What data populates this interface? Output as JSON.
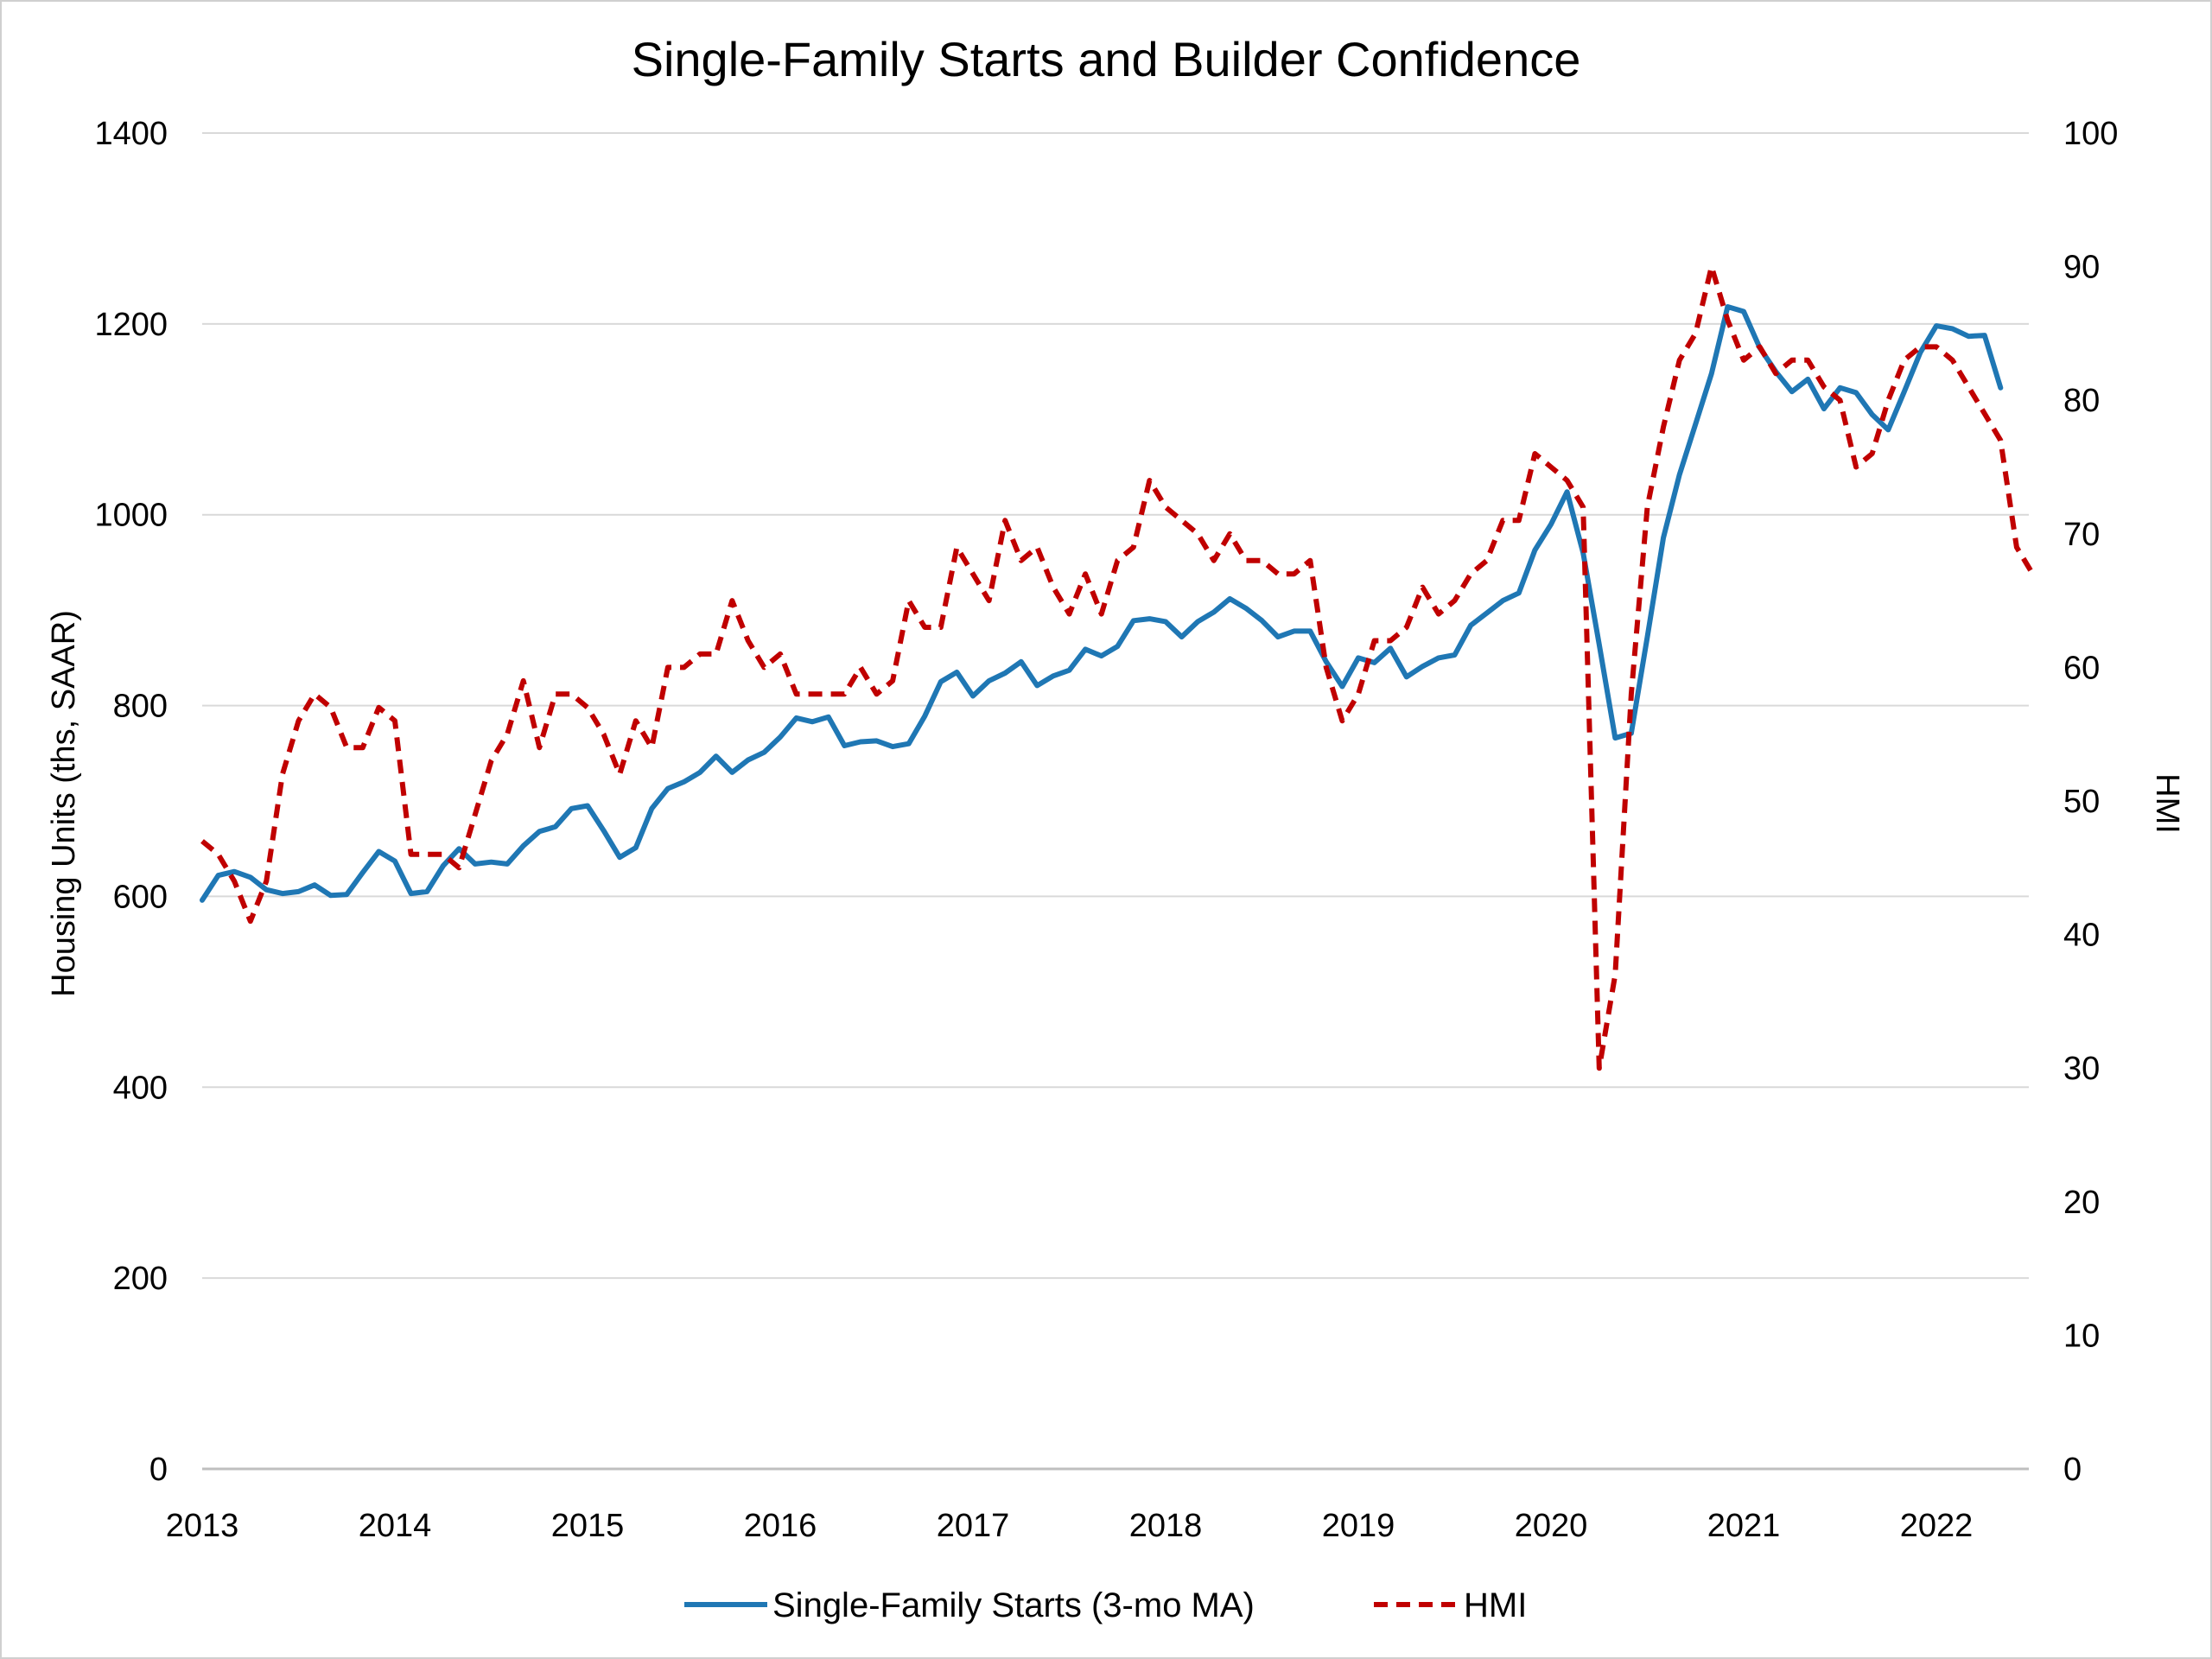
{
  "chart_data": {
    "type": "line",
    "title": "Single-Family Starts and Builder Confidence",
    "ylabel": "Housing Units (ths, SAAR)",
    "y2label": "HMI",
    "ylim": [
      0,
      1400
    ],
    "y2lim": [
      0,
      100
    ],
    "yticks": [
      0,
      200,
      400,
      600,
      800,
      1000,
      1200,
      1400
    ],
    "y2ticks": [
      0,
      10,
      20,
      30,
      40,
      50,
      60,
      70,
      80,
      90,
      100
    ],
    "xlim": [
      2013,
      2022.5
    ],
    "xticks": [
      "2013",
      "2014",
      "2015",
      "2016",
      "2017",
      "2018",
      "2019",
      "2020",
      "2021",
      "2022"
    ],
    "grid": "horizontal",
    "legend_position": "bottom",
    "colors": {
      "starts": "#1f77b4",
      "hmi": "#c00000"
    },
    "series": [
      {
        "name": "Single-Family Starts (3-mo MA)",
        "axis": "left",
        "style": "solid",
        "x_start": "2013-01",
        "interval": "monthly",
        "values": [
          596,
          622,
          626,
          620,
          607,
          603,
          605,
          612,
          601,
          602,
          625,
          647,
          637,
          603,
          605,
          632,
          650,
          634,
          636,
          634,
          653,
          668,
          673,
          692,
          695,
          669,
          641,
          651,
          692,
          713,
          720,
          730,
          747,
          730,
          743,
          751,
          767,
          787,
          783,
          788,
          758,
          762,
          763,
          757,
          760,
          789,
          825,
          835,
          810,
          826,
          834,
          846,
          821,
          831,
          837,
          859,
          852,
          862,
          889,
          891,
          888,
          872,
          888,
          898,
          912,
          902,
          889,
          872,
          878,
          878,
          846,
          820,
          850,
          845,
          860,
          830,
          841,
          850,
          853,
          884,
          897,
          910,
          918,
          963,
          990,
          1024,
          960,
          864,
          766,
          771,
          872,
          976,
          1042,
          1095,
          1148,
          1218,
          1213,
          1175,
          1150,
          1129,
          1142,
          1111,
          1133,
          1128,
          1105,
          1089,
          1129,
          1170,
          1198,
          1195,
          1187,
          1188,
          1133
        ]
      },
      {
        "name": "HMI",
        "axis": "right",
        "style": "dashed",
        "x_start": "2013-01",
        "interval": "monthly",
        "values": [
          47,
          46,
          44,
          41,
          44,
          52,
          56,
          58,
          57,
          54,
          54,
          57,
          56,
          46,
          46,
          46,
          45,
          49,
          53,
          55,
          59,
          54,
          58,
          58,
          57,
          55,
          52,
          56,
          54,
          60,
          60,
          61,
          61,
          65,
          62,
          60,
          61,
          58,
          58,
          58,
          58,
          60,
          58,
          59,
          65,
          63,
          63,
          69,
          67,
          65,
          71,
          68,
          69,
          66,
          64,
          67,
          64,
          68,
          69,
          74,
          72,
          71,
          70,
          68,
          70,
          68,
          68,
          67,
          67,
          68,
          60,
          56,
          58,
          62,
          62,
          63,
          66,
          64,
          65,
          67,
          68,
          71,
          71,
          76,
          75,
          74,
          72,
          30,
          37,
          58,
          72,
          78,
          83,
          85,
          90,
          86,
          83,
          84,
          82,
          83,
          83,
          81,
          80,
          75,
          76,
          80,
          83,
          84,
          84,
          83,
          81,
          79,
          77,
          69,
          67
        ]
      }
    ]
  }
}
